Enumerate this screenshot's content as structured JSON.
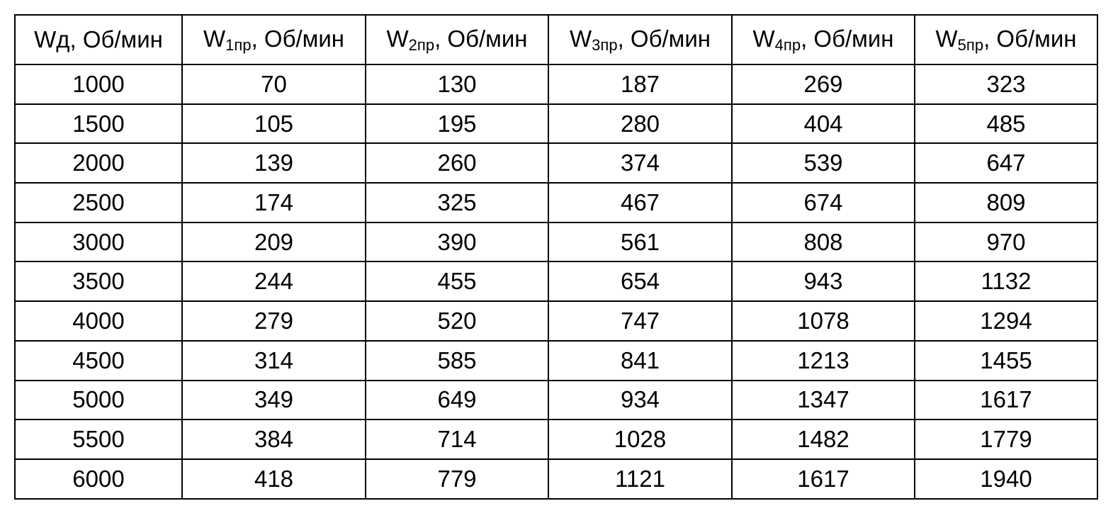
{
  "table": {
    "headers": [
      {
        "text": "Wд, Об/мин"
      },
      {
        "base": "W",
        "sub": "1пр",
        "rest": ", Об/мин"
      },
      {
        "base": "W",
        "sub": "2пр",
        "rest": ", Об/мин"
      },
      {
        "base": "W",
        "sub": "3пр",
        "rest": ", Об/мин"
      },
      {
        "base": "W",
        "sub": "4пр",
        "rest": ", Об/мин"
      },
      {
        "base": "W",
        "sub": "5пр",
        "rest": ", Об/мин"
      }
    ],
    "rows": [
      [
        1000,
        70,
        130,
        187,
        269,
        323
      ],
      [
        1500,
        105,
        195,
        280,
        404,
        485
      ],
      [
        2000,
        139,
        260,
        374,
        539,
        647
      ],
      [
        2500,
        174,
        325,
        467,
        674,
        809
      ],
      [
        3000,
        209,
        390,
        561,
        808,
        970
      ],
      [
        3500,
        244,
        455,
        654,
        943,
        1132
      ],
      [
        4000,
        279,
        520,
        747,
        1078,
        1294
      ],
      [
        4500,
        314,
        585,
        841,
        1213,
        1455
      ],
      [
        5000,
        349,
        649,
        934,
        1347,
        1617
      ],
      [
        5500,
        384,
        714,
        1028,
        1482,
        1779
      ],
      [
        6000,
        418,
        779,
        1121,
        1617,
        1940
      ]
    ]
  }
}
